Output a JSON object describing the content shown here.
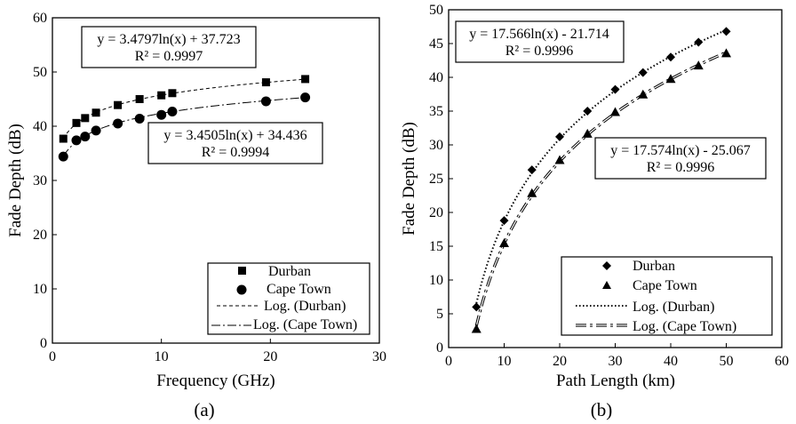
{
  "chart_data": [
    {
      "type": "scatter",
      "panel_label": "(a)",
      "xlabel": "Frequency (GHz)",
      "ylabel": "Fade Depth (dB)",
      "xlim": [
        0,
        30
      ],
      "ylim": [
        0,
        60
      ],
      "xticks": [
        "0",
        "10",
        "20",
        "30"
      ],
      "yticks": [
        "0",
        "10",
        "20",
        "30",
        "40",
        "50",
        "60"
      ],
      "grid": false,
      "legend_position": "bottom-right",
      "series": [
        {
          "name": "Durban",
          "marker": "square",
          "x": [
            1,
            2.2,
            3,
            4,
            6,
            8,
            10,
            11,
            19.6,
            23.2
          ],
          "y": [
            37.7,
            40.6,
            41.5,
            42.5,
            43.9,
            45.0,
            45.7,
            46.1,
            48.1,
            48.7
          ]
        },
        {
          "name": "Cape Town",
          "marker": "circle",
          "x": [
            1,
            2.2,
            3,
            4,
            6,
            8,
            10,
            11,
            19.6,
            23.2
          ],
          "y": [
            34.4,
            37.4,
            38.1,
            39.2,
            40.5,
            41.4,
            42.1,
            42.7,
            44.6,
            45.3
          ]
        }
      ],
      "trendlines": [
        {
          "name": "Log. (Durban)",
          "a": 3.4797,
          "b": 37.723,
          "style": "dashed"
        },
        {
          "name": "Log. (Cape Town)",
          "a": 3.4505,
          "b": 34.436,
          "style": "dashdot"
        }
      ],
      "annotations": [
        {
          "line1": "y = 3.4797ln(x) + 37.723",
          "line2": "R² = 0.9997"
        },
        {
          "line1": "y = 3.4505ln(x) + 34.436",
          "line2": "R² = 0.9994"
        }
      ]
    },
    {
      "type": "scatter",
      "panel_label": "(b)",
      "xlabel": "Path Length (km)",
      "ylabel": "Fade Depth (dB)",
      "xlim": [
        0,
        60
      ],
      "ylim": [
        0,
        50
      ],
      "xticks": [
        "0",
        "10",
        "20",
        "30",
        "40",
        "50",
        "60"
      ],
      "yticks": [
        "0",
        "5",
        "10",
        "15",
        "20",
        "25",
        "30",
        "35",
        "40",
        "45",
        "50"
      ],
      "grid": false,
      "legend_position": "bottom-right",
      "series": [
        {
          "name": "Durban",
          "marker": "diamond",
          "x": [
            5,
            10,
            15,
            20,
            25,
            30,
            35,
            40,
            45,
            50
          ],
          "y": [
            6.0,
            18.8,
            26.3,
            31.2,
            35.0,
            38.2,
            40.7,
            43.0,
            45.2,
            46.8
          ]
        },
        {
          "name": "Cape Town",
          "marker": "triangle",
          "x": [
            5,
            10,
            15,
            20,
            25,
            30,
            35,
            40,
            45,
            50
          ],
          "y": [
            2.7,
            15.4,
            22.8,
            27.7,
            31.6,
            34.8,
            37.4,
            39.7,
            41.7,
            43.5
          ]
        }
      ],
      "trendlines": [
        {
          "name": "Log. (Durban)",
          "a": 17.566,
          "b": -21.714,
          "style": "dotted"
        },
        {
          "name": "Log. (Cape Town)",
          "a": 17.574,
          "b": -25.067,
          "style": "dashdot-double"
        }
      ],
      "annotations": [
        {
          "line1": "y = 17.566ln(x) - 21.714",
          "line2": "R² = 0.9996"
        },
        {
          "line1": "y = 17.574ln(x) - 25.067",
          "line2": "R² = 0.9996"
        }
      ]
    }
  ]
}
